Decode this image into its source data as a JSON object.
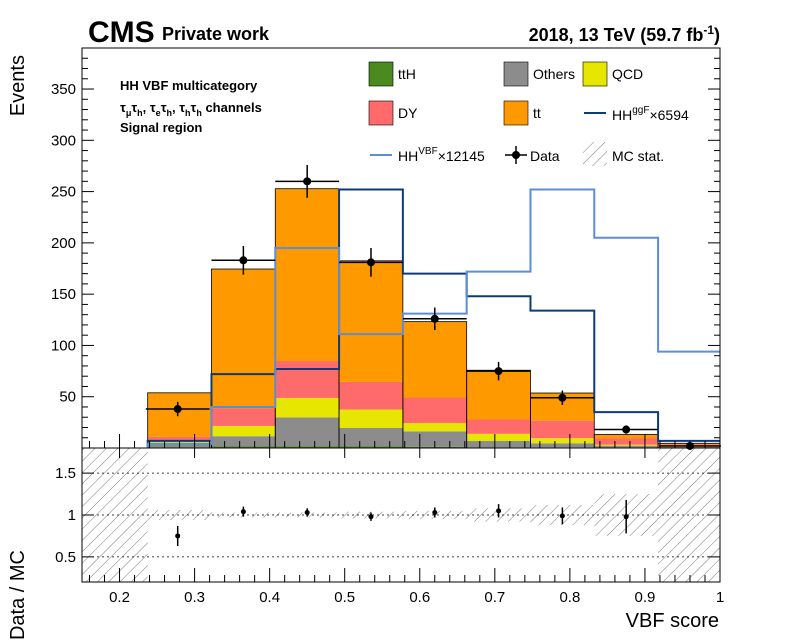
{
  "header": {
    "experiment": "CMS",
    "subtitle": "Private work",
    "lumi_prefix": "2018, 13 TeV (59.7 fb",
    "lumi_sup": "-1",
    "lumi_suffix": ")"
  },
  "annotation": {
    "line1": "HH VBF multicategory",
    "line2_parts": [
      "τ",
      "μ",
      "τ",
      "h",
      ",  τ",
      "e",
      "τ",
      "h",
      ",  τ",
      "h",
      "τ",
      "h",
      " channels"
    ],
    "line3": "Signal region"
  },
  "legend": {
    "tth": "ttH",
    "others": "Others",
    "qcd": "QCD",
    "dy": "DY",
    "tt": "tt",
    "hhggf_base": "HH",
    "hhggf_sup": "ggF",
    "hhggf_scale": "×6594",
    "hhvbf_base": "HH",
    "hhvbf_sup": "VBF",
    "hhvbf_scale": "×12145",
    "data": "Data",
    "mcstat": "MC stat."
  },
  "chart_data": {
    "type": "bar",
    "stacked": true,
    "xlabel": "VBF score",
    "ylabel": "Events",
    "xlim": [
      0.15,
      1.0
    ],
    "ylim": [
      0,
      390
    ],
    "xticks": [
      "0.2",
      "0.3",
      "0.4",
      "0.5",
      "0.6",
      "0.7",
      "0.8",
      "0.9",
      "1"
    ],
    "yticks": [
      "50",
      "100",
      "150",
      "200",
      "250",
      "300",
      "350"
    ],
    "bin_edges": [
      0.15,
      0.2375,
      0.3225,
      0.4075,
      0.4925,
      0.5775,
      0.6625,
      0.7475,
      0.8325,
      0.9175,
      1.0
    ],
    "colors": {
      "tth": "#4a8a1f",
      "others": "#8c8c8c",
      "qcd": "#e6e600",
      "dy": "#ff6a6a",
      "tt": "#ff9900",
      "hhggf": "#0d3b7a",
      "hhvbf": "#5b8ed6",
      "data": "#000000"
    },
    "series": [
      {
        "name": "ttH",
        "key": "tth",
        "values": [
          0,
          0.8,
          1.5,
          1.8,
          1.5,
          1.2,
          0.8,
          0.6,
          0.3,
          0.1
        ]
      },
      {
        "name": "Others",
        "key": "others",
        "values": [
          0,
          3,
          10,
          28,
          18,
          15,
          6,
          4,
          2,
          1
        ]
      },
      {
        "name": "QCD",
        "key": "qcd",
        "values": [
          0,
          4,
          10,
          19,
          18,
          8,
          7,
          5,
          1,
          0.5
        ]
      },
      {
        "name": "DY",
        "key": "dy",
        "values": [
          0,
          3,
          17,
          36,
          27,
          25,
          14,
          17,
          6,
          2
        ]
      },
      {
        "name": "tt",
        "key": "tt",
        "values": [
          0,
          43,
          136,
          168,
          118,
          74,
          48,
          27,
          4,
          1
        ]
      }
    ],
    "signals": [
      {
        "name": "HH ggF ×6594",
        "key": "hhggf",
        "values": [
          0,
          7,
          72,
          77,
          252,
          170,
          148,
          134,
          35,
          7
        ]
      },
      {
        "name": "HH VBF ×12145",
        "key": "hhvbf",
        "values": [
          0,
          4,
          40,
          195,
          111,
          131,
          172,
          252,
          205,
          94
        ]
      }
    ],
    "data": {
      "x": [
        0.2775,
        0.365,
        0.45,
        0.535,
        0.62,
        0.705,
        0.79,
        0.875,
        0.96
      ],
      "y": [
        38,
        183,
        260,
        181,
        126,
        75,
        49,
        18,
        2
      ],
      "err": [
        7,
        14,
        16,
        14,
        11,
        9,
        7,
        4,
        2
      ]
    },
    "ratio": {
      "ylabel": "Data / MC",
      "ylim": [
        0.2,
        1.8
      ],
      "yticks": [
        "0.5",
        "1",
        "1.5"
      ],
      "x": [
        0.2775,
        0.365,
        0.45,
        0.535,
        0.62,
        0.705,
        0.79,
        0.875
      ],
      "y": [
        0.75,
        1.04,
        1.03,
        0.98,
        1.03,
        1.05,
        0.99,
        0.98
      ],
      "err": [
        0.12,
        0.06,
        0.05,
        0.05,
        0.06,
        0.08,
        0.1,
        0.2
      ]
    }
  }
}
